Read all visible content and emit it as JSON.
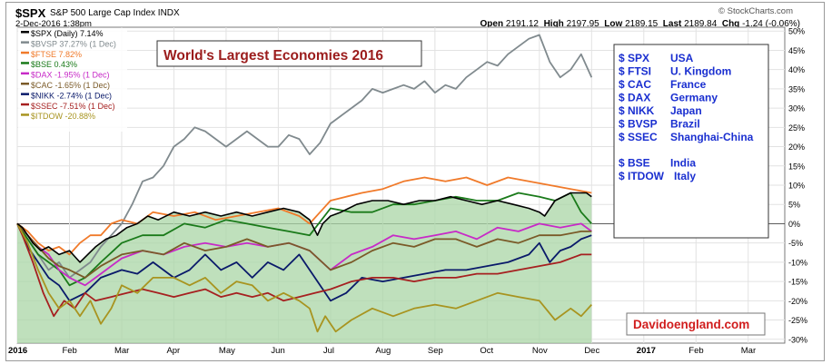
{
  "header": {
    "symbol": "$SPX",
    "description": "S&P 500 Large Cap Index  INDX",
    "date": "2-Dec-2016 1:38pm",
    "copyright": "© StockCharts.com",
    "open_label": "Open",
    "open": "2191.12",
    "high_label": "High",
    "high": "2197.95",
    "low_label": "Low",
    "low": "2189.15",
    "last_label": "Last",
    "last": "2189.84",
    "chg_label": "Chg",
    "chg": "-1.24 (-0.06%)"
  },
  "title_box": {
    "text": "World's Largest Economies 2016"
  },
  "watermark": {
    "text": "Davidoengland.com"
  },
  "key_box": {
    "groups": [
      [
        {
          "symbol": "$ SPX",
          "country": "USA"
        },
        {
          "symbol": "$ FTSI",
          "country": "U. Kingdom"
        },
        {
          "symbol": "$ CAC",
          "country": "France"
        },
        {
          "symbol": "$ DAX",
          "country": "Germany"
        },
        {
          "symbol": "$ NIKK",
          "country": "Japan"
        },
        {
          "symbol": "$ BVSP",
          "country": "Brazil"
        },
        {
          "symbol": "$ SSEC",
          "country": "Shanghai-China"
        }
      ],
      [
        {
          "symbol": "$ BSE",
          "country": "India"
        },
        {
          "symbol": "$ ITDOW",
          "country": "Italy"
        }
      ]
    ],
    "text_color": "#1a2fd0"
  },
  "chart_data": {
    "type": "line",
    "y_unit": "%",
    "ylim": [
      -31,
      51
    ],
    "y_ticks": [
      -30,
      -25,
      -20,
      -15,
      -10,
      -5,
      0,
      5,
      10,
      15,
      20,
      25,
      30,
      35,
      40,
      45,
      50
    ],
    "y_tick_labels": [
      "-30%",
      "-25%",
      "-20%",
      "-15%",
      "-10%",
      "-5%",
      "0%",
      "5%",
      "10%",
      "15%",
      "20%",
      "25%",
      "30%",
      "35%",
      "40%",
      "45%",
      "50%"
    ],
    "x_ticks": [
      "2016",
      "Feb",
      "Mar",
      "Apr",
      "May",
      "Jun",
      "Jul",
      "Aug",
      "Sep",
      "Oct",
      "Nov",
      "Dec",
      "2017",
      "Feb",
      "Mar"
    ],
    "x_tick_bold": [
      true,
      false,
      false,
      false,
      false,
      false,
      false,
      false,
      false,
      false,
      false,
      false,
      true,
      false,
      false
    ],
    "x_month_index": [
      0,
      1,
      2,
      3,
      4,
      5,
      6,
      7,
      8,
      9,
      10,
      11,
      12,
      13,
      14
    ],
    "grid": true,
    "legend_position": "top-left",
    "series": [
      {
        "name": "$SPX (Daily) 7.14%",
        "color": "#000000",
        "fill": "#a9d5a5",
        "x": [
          0,
          0.1,
          0.2,
          0.3,
          0.45,
          0.6,
          0.8,
          1.0,
          1.2,
          1.35,
          1.5,
          1.7,
          1.9,
          2.1,
          2.3,
          2.5,
          2.7,
          3.0,
          3.3,
          3.6,
          3.9,
          4.2,
          4.5,
          4.8,
          5.1,
          5.4,
          5.6,
          5.75,
          5.85,
          6.0,
          6.2,
          6.5,
          6.8,
          7.1,
          7.4,
          7.7,
          8.0,
          8.3,
          8.6,
          8.9,
          9.2,
          9.5,
          9.8,
          10.0,
          10.1,
          10.3,
          10.6,
          10.9,
          11.0
        ],
        "y": [
          0,
          -1,
          -3,
          -5,
          -7,
          -6,
          -8,
          -7,
          -10,
          -8,
          -6,
          -4,
          -3,
          -1,
          0,
          2,
          1,
          3,
          2,
          3,
          2,
          3,
          2,
          3,
          4,
          3,
          1,
          -3,
          0,
          2,
          3,
          5,
          6,
          6,
          5,
          6,
          6,
          7,
          6,
          5,
          6,
          5,
          4,
          3,
          2,
          6,
          8,
          8,
          7
        ]
      },
      {
        "name": "$BVSP 37.27% (1 Dec)",
        "color": "#808a8e",
        "x": [
          0,
          0.2,
          0.4,
          0.6,
          0.8,
          1.0,
          1.2,
          1.4,
          1.6,
          1.8,
          2.0,
          2.2,
          2.4,
          2.6,
          2.8,
          3.0,
          3.2,
          3.4,
          3.6,
          3.8,
          4.0,
          4.2,
          4.4,
          4.6,
          4.8,
          5.0,
          5.2,
          5.4,
          5.6,
          5.8,
          6.0,
          6.2,
          6.4,
          6.6,
          6.8,
          7.0,
          7.2,
          7.4,
          7.6,
          7.8,
          8.0,
          8.2,
          8.4,
          8.6,
          8.8,
          9.0,
          9.2,
          9.4,
          9.6,
          9.8,
          10.0,
          10.2,
          10.4,
          10.6,
          10.8,
          11.0
        ],
        "y": [
          0,
          -4,
          -8,
          -12,
          -10,
          -14,
          -12,
          -10,
          -6,
          -3,
          0,
          5,
          11,
          12,
          15,
          20,
          22,
          25,
          24,
          22,
          20,
          22,
          24,
          22,
          20,
          20,
          23,
          22,
          18,
          21,
          26,
          28,
          30,
          32,
          35,
          34,
          35,
          36,
          35,
          37,
          34,
          36,
          35,
          38,
          40,
          42,
          41,
          44,
          46,
          48,
          49,
          42,
          38,
          40,
          44,
          38
        ]
      },
      {
        "name": "$FTSE 7.82%",
        "color": "#f07a2a",
        "x": [
          0,
          0.2,
          0.4,
          0.6,
          0.8,
          1.0,
          1.2,
          1.4,
          1.6,
          1.8,
          2.0,
          2.3,
          2.6,
          3.0,
          3.4,
          3.8,
          4.2,
          4.6,
          5.0,
          5.4,
          5.6,
          5.8,
          6.0,
          6.3,
          6.6,
          7.0,
          7.4,
          7.8,
          8.2,
          8.6,
          9.0,
          9.4,
          9.8,
          10.2,
          10.6,
          11.0
        ],
        "y": [
          0,
          -2,
          -5,
          -7,
          -6,
          -8,
          -5,
          -3,
          -3,
          0,
          1,
          0,
          3,
          2,
          3,
          1,
          2,
          3,
          4,
          2,
          0,
          3,
          6,
          7,
          8,
          9,
          11,
          12,
          11,
          12,
          10,
          12,
          11,
          10,
          9,
          8
        ]
      },
      {
        "name": "$BSE 0.43%",
        "color": "#1a7a1a",
        "x": [
          0,
          0.2,
          0.4,
          0.6,
          0.8,
          1.0,
          1.3,
          1.6,
          2.0,
          2.4,
          2.8,
          3.2,
          3.6,
          4.0,
          4.4,
          4.8,
          5.2,
          5.6,
          6.0,
          6.4,
          6.8,
          7.2,
          7.6,
          8.0,
          8.4,
          8.8,
          9.2,
          9.6,
          10.0,
          10.3,
          10.6,
          10.8,
          11.0
        ],
        "y": [
          0,
          -4,
          -8,
          -10,
          -12,
          -16,
          -14,
          -10,
          -5,
          -3,
          -3,
          0,
          -1,
          1,
          0,
          -1,
          -2,
          -3,
          4,
          3,
          3,
          5,
          5,
          6,
          7,
          6,
          6,
          8,
          7,
          6,
          8,
          3,
          0
        ]
      },
      {
        "name": "$DAX -1.95% (1 Dec)",
        "color": "#c72ac7",
        "x": [
          0,
          0.2,
          0.4,
          0.6,
          0.8,
          1.0,
          1.3,
          1.6,
          2.0,
          2.4,
          2.8,
          3.2,
          3.6,
          4.0,
          4.4,
          4.8,
          5.2,
          5.6,
          6.0,
          6.4,
          6.8,
          7.2,
          7.6,
          8.0,
          8.4,
          8.8,
          9.2,
          9.6,
          10.0,
          10.4,
          10.8,
          11.0
        ],
        "y": [
          0,
          -3,
          -6,
          -8,
          -12,
          -14,
          -16,
          -13,
          -9,
          -7,
          -8,
          -6,
          -5,
          -6,
          -5,
          -6,
          -5,
          -7,
          -12,
          -8,
          -6,
          -3,
          -4,
          -3,
          -2,
          -4,
          -1,
          -2,
          0,
          -1,
          0,
          -2
        ]
      },
      {
        "name": "$CAC -1.65% (1 Dec)",
        "color": "#7a5a28",
        "x": [
          0,
          0.2,
          0.4,
          0.6,
          0.8,
          1.0,
          1.3,
          1.6,
          2.0,
          2.4,
          2.8,
          3.2,
          3.6,
          4.0,
          4.4,
          4.8,
          5.2,
          5.6,
          6.0,
          6.4,
          6.8,
          7.2,
          7.6,
          8.0,
          8.4,
          8.8,
          9.2,
          9.6,
          10.0,
          10.4,
          10.8,
          11.0
        ],
        "y": [
          0,
          -3,
          -6,
          -9,
          -11,
          -12,
          -14,
          -11,
          -8,
          -7,
          -8,
          -5,
          -7,
          -6,
          -4,
          -6,
          -5,
          -7,
          -12,
          -10,
          -7,
          -5,
          -6,
          -4,
          -4,
          -6,
          -4,
          -5,
          -3,
          -3,
          -2,
          -2
        ]
      },
      {
        "name": "$NIKK -2.74% (1 Dec)",
        "color": "#0a1a6a",
        "x": [
          0,
          0.2,
          0.4,
          0.6,
          0.8,
          1.0,
          1.3,
          1.6,
          2.0,
          2.3,
          2.6,
          3.0,
          3.3,
          3.6,
          3.9,
          4.2,
          4.5,
          4.8,
          5.1,
          5.4,
          5.7,
          6.0,
          6.3,
          6.6,
          7.0,
          7.4,
          7.8,
          8.2,
          8.6,
          9.0,
          9.4,
          9.8,
          10.0,
          10.2,
          10.4,
          10.6,
          10.8,
          11.0
        ],
        "y": [
          0,
          -6,
          -10,
          -14,
          -16,
          -20,
          -18,
          -14,
          -12,
          -13,
          -10,
          -14,
          -12,
          -8,
          -12,
          -10,
          -14,
          -10,
          -12,
          -8,
          -14,
          -20,
          -18,
          -14,
          -15,
          -14,
          -13,
          -12,
          -12,
          -11,
          -10,
          -8,
          -5,
          -10,
          -7,
          -6,
          -4,
          -3
        ]
      },
      {
        "name": "$SSEC -7.51% (1 Dec)",
        "color": "#a62020",
        "x": [
          0,
          0.1,
          0.3,
          0.5,
          0.7,
          0.9,
          1.1,
          1.3,
          1.5,
          1.8,
          2.1,
          2.4,
          2.7,
          3.0,
          3.3,
          3.6,
          3.9,
          4.2,
          4.5,
          4.8,
          5.1,
          5.4,
          5.7,
          6.0,
          6.4,
          6.8,
          7.2,
          7.6,
          8.0,
          8.4,
          8.8,
          9.2,
          9.6,
          10.0,
          10.4,
          10.8,
          11.0
        ],
        "y": [
          0,
          -3,
          -10,
          -18,
          -24,
          -20,
          -22,
          -18,
          -20,
          -19,
          -18,
          -17,
          -18,
          -19,
          -18,
          -17,
          -19,
          -18,
          -19,
          -18,
          -20,
          -19,
          -18,
          -17,
          -15,
          -14,
          -14,
          -15,
          -14,
          -14,
          -13,
          -13,
          -12,
          -11,
          -10,
          -8,
          -8
        ]
      },
      {
        "name": "$ITDOW -20.88%",
        "color": "#a89420",
        "x": [
          0,
          0.2,
          0.4,
          0.6,
          0.8,
          1.0,
          1.2,
          1.4,
          1.6,
          1.8,
          2.0,
          2.3,
          2.6,
          3.0,
          3.3,
          3.6,
          3.9,
          4.2,
          4.5,
          4.8,
          5.1,
          5.4,
          5.6,
          5.75,
          5.9,
          6.1,
          6.4,
          6.8,
          7.2,
          7.6,
          8.0,
          8.4,
          8.8,
          9.2,
          9.6,
          10.0,
          10.3,
          10.6,
          10.8,
          11.0
        ],
        "y": [
          0,
          -5,
          -12,
          -18,
          -22,
          -20,
          -24,
          -20,
          -26,
          -22,
          -16,
          -18,
          -14,
          -14,
          -16,
          -14,
          -18,
          -15,
          -16,
          -20,
          -18,
          -20,
          -22,
          -28,
          -24,
          -28,
          -25,
          -22,
          -24,
          -22,
          -21,
          -22,
          -20,
          -18,
          -19,
          -20,
          -25,
          -22,
          -24,
          -21
        ]
      }
    ]
  }
}
